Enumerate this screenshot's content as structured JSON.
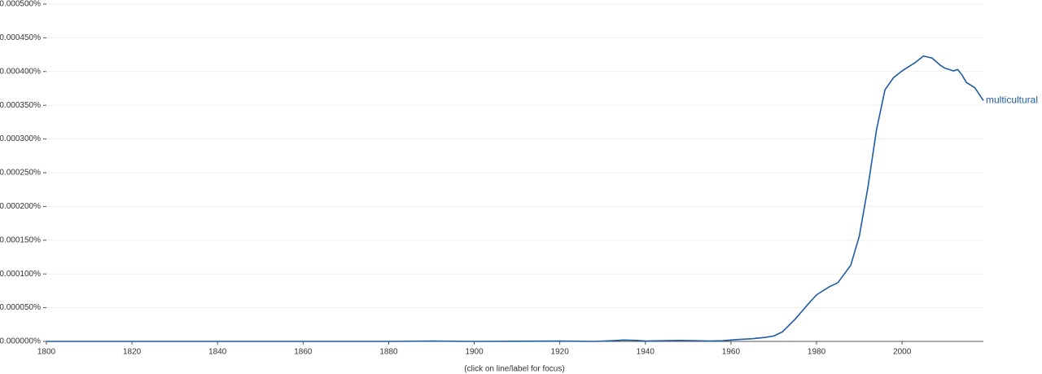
{
  "chart_data": {
    "type": "line",
    "x": [
      1800,
      1850,
      1880,
      1890,
      1900,
      1920,
      1928,
      1932,
      1935,
      1938,
      1940,
      1944,
      1948,
      1952,
      1955,
      1958,
      1960,
      1962,
      1965,
      1968,
      1970,
      1972,
      1975,
      1978,
      1980,
      1983,
      1985,
      1988,
      1990,
      1992,
      1994,
      1996,
      1998,
      2000,
      2003,
      2005,
      2007,
      2009,
      2010,
      2012,
      2013,
      2014,
      2015,
      2017,
      2019
    ],
    "series": [
      {
        "name": "multicultural",
        "color": "#1f5aa6",
        "values": [
          0,
          0,
          0,
          5e-07,
          0,
          5e-07,
          0,
          1e-06,
          2e-06,
          1.5e-06,
          5e-07,
          1e-06,
          1.5e-06,
          1e-06,
          5e-07,
          1e-06,
          2e-06,
          3e-06,
          4e-06,
          6e-06,
          8e-06,
          1.4e-05,
          3.3e-05,
          5.5e-05,
          6.9e-05,
          8.1e-05,
          8.7e-05,
          0.000113,
          0.000156,
          0.000228,
          0.000313,
          0.000373,
          0.000391,
          0.000401,
          0.000413,
          0.000423,
          0.00042,
          0.000409,
          0.000405,
          0.000401,
          0.000403,
          0.000395,
          0.000384,
          0.000376,
          0.000357
        ]
      }
    ],
    "xlim": [
      1800,
      2019
    ],
    "xticks": [
      1800,
      1820,
      1840,
      1860,
      1880,
      1900,
      1920,
      1940,
      1960,
      1980,
      2000
    ],
    "ylim": [
      0,
      0.0005
    ],
    "yticks": [
      {
        "value": 0,
        "label": "0.000000%"
      },
      {
        "value": 5e-05,
        "label": "0.000050%"
      },
      {
        "value": 0.0001,
        "label": "0.000100%"
      },
      {
        "value": 0.00015,
        "label": "0.000150%"
      },
      {
        "value": 0.0002,
        "label": "0.000200%"
      },
      {
        "value": 0.00025,
        "label": "0.000250%"
      },
      {
        "value": 0.0003,
        "label": "0.000300%"
      },
      {
        "value": 0.00035,
        "label": "0.000350%"
      },
      {
        "value": 0.0004,
        "label": "0.000400%"
      },
      {
        "value": 0.00045,
        "label": "0.000450%"
      },
      {
        "value": 0.0005,
        "label": "0.000500%"
      }
    ],
    "grid": true,
    "note": "(click on line/label for focus)"
  }
}
